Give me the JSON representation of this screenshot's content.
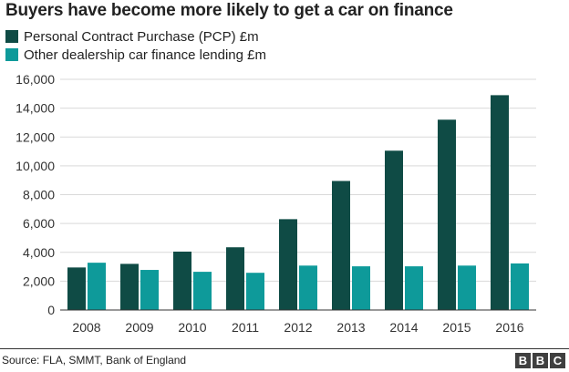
{
  "chart_data": {
    "type": "bar",
    "title": "Buyers have become more likely to get a car on finance",
    "categories": [
      "2008",
      "2009",
      "2010",
      "2011",
      "2012",
      "2013",
      "2014",
      "2015",
      "2016"
    ],
    "series": [
      {
        "name": "Personal Contract Purchase (PCP) £m",
        "color": "#0f4b45",
        "values": [
          2950,
          3200,
          4050,
          4350,
          6300,
          8950,
          11050,
          13200,
          14900
        ]
      },
      {
        "name": "Other dealership car finance lending £m",
        "color": "#0e9a9a",
        "values": [
          3280,
          2780,
          2650,
          2580,
          3080,
          3030,
          3030,
          3080,
          3230
        ]
      }
    ],
    "y_ticks": [
      "0",
      "2,000",
      "4,000",
      "6,000",
      "8,000",
      "10,000",
      "12,000",
      "14,000",
      "16,000"
    ],
    "ylim": [
      0,
      16000
    ],
    "xlabel": "",
    "ylabel": "",
    "grid": true,
    "legend_position": "top-left"
  },
  "footer": {
    "source": "Source: FLA, SMMT, Bank of England",
    "logo_letters": [
      "B",
      "B",
      "C"
    ]
  }
}
